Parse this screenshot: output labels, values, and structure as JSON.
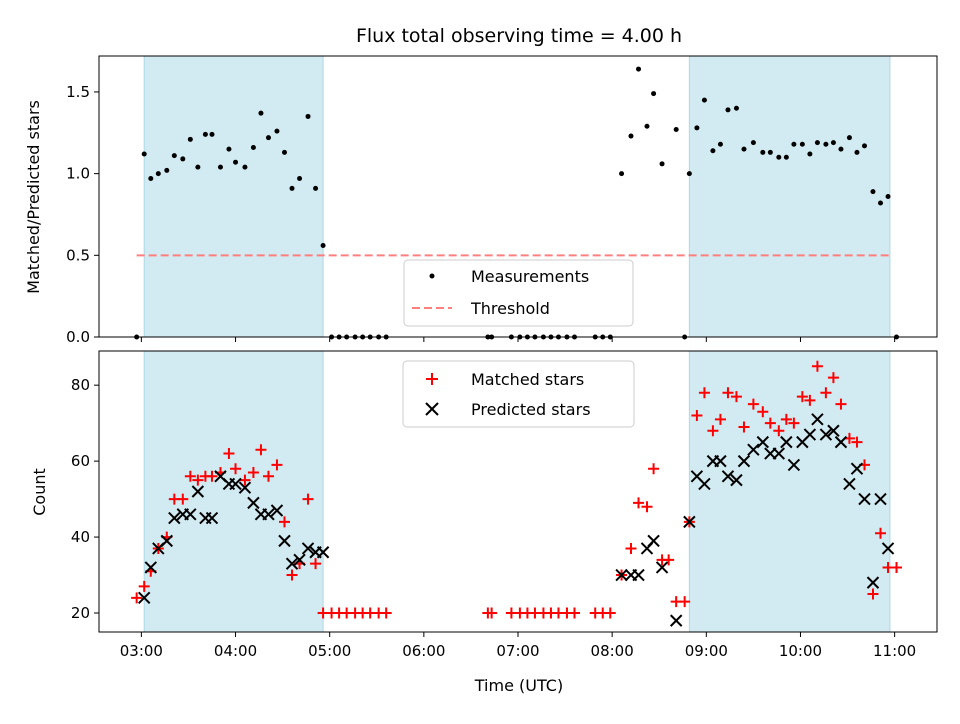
{
  "title": "Flux total observing time = 4.00 h",
  "colors": {
    "band": "#add8e6",
    "threshold": "#ff7f7f",
    "matched": "#ff0000",
    "predicted": "#000000",
    "measurement": "#000000"
  },
  "chart_data": [
    {
      "type": "scatter",
      "ylabel": "Matched/Predicted stars",
      "xlim": [
        2.55,
        11.45
      ],
      "ylim": [
        0,
        1.72
      ],
      "yticks": [
        0.0,
        0.5,
        1.0,
        1.5
      ],
      "ytick_labels": [
        "0.0",
        "0.5",
        "1.0",
        "1.5"
      ],
      "grid": false,
      "legend_position": "lower-center",
      "shaded_intervals": [
        [
          3.03,
          4.93
        ],
        [
          8.82,
          10.95
        ]
      ],
      "threshold": {
        "name": "Threshold",
        "value": 0.5,
        "x_range": [
          2.95,
          10.98
        ]
      },
      "series": [
        {
          "name": "Measurements",
          "marker": "dot",
          "points": [
            [
              2.95,
              0.0
            ],
            [
              3.03,
              1.12
            ],
            [
              3.1,
              0.97
            ],
            [
              3.18,
              1.0
            ],
            [
              3.27,
              1.02
            ],
            [
              3.35,
              1.11
            ],
            [
              3.44,
              1.09
            ],
            [
              3.52,
              1.21
            ],
            [
              3.6,
              1.04
            ],
            [
              3.68,
              1.24
            ],
            [
              3.75,
              1.24
            ],
            [
              3.84,
              1.04
            ],
            [
              3.93,
              1.15
            ],
            [
              4.0,
              1.07
            ],
            [
              4.1,
              1.04
            ],
            [
              4.19,
              1.16
            ],
            [
              4.27,
              1.37
            ],
            [
              4.35,
              1.22
            ],
            [
              4.44,
              1.26
            ],
            [
              4.52,
              1.13
            ],
            [
              4.6,
              0.91
            ],
            [
              4.68,
              0.97
            ],
            [
              4.77,
              1.35
            ],
            [
              4.85,
              0.91
            ],
            [
              4.93,
              0.56
            ],
            [
              5.02,
              0.0
            ],
            [
              5.1,
              0.0
            ],
            [
              5.18,
              0.0
            ],
            [
              5.27,
              0.0
            ],
            [
              5.35,
              0.0
            ],
            [
              5.43,
              0.0
            ],
            [
              5.52,
              0.0
            ],
            [
              5.6,
              0.0
            ],
            [
              6.68,
              0.0
            ],
            [
              6.72,
              0.0
            ],
            [
              6.93,
              0.0
            ],
            [
              7.02,
              0.0
            ],
            [
              7.1,
              0.0
            ],
            [
              7.18,
              0.0
            ],
            [
              7.27,
              0.0
            ],
            [
              7.35,
              0.0
            ],
            [
              7.43,
              0.0
            ],
            [
              7.52,
              0.0
            ],
            [
              7.6,
              0.0
            ],
            [
              7.82,
              0.0
            ],
            [
              7.9,
              0.0
            ],
            [
              7.98,
              0.0
            ],
            [
              8.1,
              1.0
            ],
            [
              8.2,
              1.23
            ],
            [
              8.28,
              1.64
            ],
            [
              8.37,
              1.29
            ],
            [
              8.44,
              1.49
            ],
            [
              8.53,
              1.06
            ],
            [
              8.68,
              1.27
            ],
            [
              8.77,
              0.0
            ],
            [
              8.82,
              1.0
            ],
            [
              8.9,
              1.28
            ],
            [
              8.98,
              1.45
            ],
            [
              9.07,
              1.14
            ],
            [
              9.15,
              1.18
            ],
            [
              9.23,
              1.39
            ],
            [
              9.32,
              1.4
            ],
            [
              9.4,
              1.15
            ],
            [
              9.5,
              1.19
            ],
            [
              9.6,
              1.13
            ],
            [
              9.68,
              1.13
            ],
            [
              9.77,
              1.1
            ],
            [
              9.85,
              1.1
            ],
            [
              9.93,
              1.18
            ],
            [
              10.02,
              1.18
            ],
            [
              10.1,
              1.12
            ],
            [
              10.18,
              1.19
            ],
            [
              10.27,
              1.18
            ],
            [
              10.35,
              1.19
            ],
            [
              10.43,
              1.15
            ],
            [
              10.52,
              1.22
            ],
            [
              10.6,
              1.13
            ],
            [
              10.68,
              1.17
            ],
            [
              10.77,
              0.89
            ],
            [
              10.85,
              0.82
            ],
            [
              10.93,
              0.86
            ],
            [
              11.02,
              0.0
            ]
          ]
        }
      ]
    },
    {
      "type": "scatter",
      "xlabel": "Time (UTC)",
      "ylabel": "Count",
      "xlim": [
        2.55,
        11.45
      ],
      "ylim": [
        15,
        89
      ],
      "xticks": [
        3,
        4,
        5,
        6,
        7,
        8,
        9,
        10,
        11
      ],
      "xtick_labels": [
        "03:00",
        "04:00",
        "05:00",
        "06:00",
        "07:00",
        "08:00",
        "09:00",
        "10:00",
        "11:00"
      ],
      "yticks": [
        20,
        40,
        60,
        80
      ],
      "ytick_labels": [
        "20",
        "40",
        "60",
        "80"
      ],
      "grid": false,
      "legend_position": "top-center",
      "shaded_intervals": [
        [
          3.03,
          4.93
        ],
        [
          8.82,
          10.95
        ]
      ],
      "series": [
        {
          "name": "Matched stars",
          "marker": "plus",
          "points": [
            [
              2.95,
              24
            ],
            [
              3.03,
              27
            ],
            [
              3.1,
              31
            ],
            [
              3.18,
              37
            ],
            [
              3.27,
              40
            ],
            [
              3.35,
              50
            ],
            [
              3.44,
              50
            ],
            [
              3.52,
              56
            ],
            [
              3.6,
              55
            ],
            [
              3.68,
              56
            ],
            [
              3.75,
              56
            ],
            [
              3.84,
              57
            ],
            [
              3.93,
              62
            ],
            [
              4.0,
              58
            ],
            [
              4.1,
              55
            ],
            [
              4.19,
              57
            ],
            [
              4.27,
              63
            ],
            [
              4.35,
              56
            ],
            [
              4.44,
              59
            ],
            [
              4.52,
              44
            ],
            [
              4.6,
              30
            ],
            [
              4.68,
              33
            ],
            [
              4.77,
              50
            ],
            [
              4.85,
              33
            ],
            [
              4.93,
              20
            ],
            [
              5.02,
              20
            ],
            [
              5.1,
              20
            ],
            [
              5.18,
              20
            ],
            [
              5.27,
              20
            ],
            [
              5.35,
              20
            ],
            [
              5.43,
              20
            ],
            [
              5.52,
              20
            ],
            [
              5.6,
              20
            ],
            [
              6.68,
              20
            ],
            [
              6.72,
              20
            ],
            [
              6.93,
              20
            ],
            [
              7.02,
              20
            ],
            [
              7.1,
              20
            ],
            [
              7.18,
              20
            ],
            [
              7.27,
              20
            ],
            [
              7.35,
              20
            ],
            [
              7.43,
              20
            ],
            [
              7.52,
              20
            ],
            [
              7.6,
              20
            ],
            [
              7.82,
              20
            ],
            [
              7.9,
              20
            ],
            [
              7.98,
              20
            ],
            [
              8.1,
              30
            ],
            [
              8.2,
              37
            ],
            [
              8.28,
              49
            ],
            [
              8.37,
              48
            ],
            [
              8.44,
              58
            ],
            [
              8.53,
              34
            ],
            [
              8.6,
              34
            ],
            [
              8.68,
              23
            ],
            [
              8.77,
              23
            ],
            [
              8.82,
              44
            ],
            [
              8.9,
              72
            ],
            [
              8.98,
              78
            ],
            [
              9.07,
              68
            ],
            [
              9.15,
              71
            ],
            [
              9.23,
              78
            ],
            [
              9.32,
              77
            ],
            [
              9.4,
              69
            ],
            [
              9.5,
              75
            ],
            [
              9.6,
              73
            ],
            [
              9.68,
              70
            ],
            [
              9.77,
              68
            ],
            [
              9.85,
              71
            ],
            [
              9.93,
              70
            ],
            [
              10.02,
              77
            ],
            [
              10.1,
              76
            ],
            [
              10.18,
              85
            ],
            [
              10.27,
              78
            ],
            [
              10.35,
              82
            ],
            [
              10.43,
              75
            ],
            [
              10.52,
              66
            ],
            [
              10.6,
              65
            ],
            [
              10.68,
              59
            ],
            [
              10.77,
              25
            ],
            [
              10.85,
              41
            ],
            [
              10.93,
              32
            ],
            [
              11.02,
              32
            ]
          ]
        },
        {
          "name": "Predicted stars",
          "marker": "cross",
          "points": [
            [
              3.03,
              24
            ],
            [
              3.1,
              32
            ],
            [
              3.18,
              37
            ],
            [
              3.27,
              39
            ],
            [
              3.35,
              45
            ],
            [
              3.44,
              46
            ],
            [
              3.52,
              46
            ],
            [
              3.6,
              52
            ],
            [
              3.68,
              45
            ],
            [
              3.75,
              45
            ],
            [
              3.84,
              56
            ],
            [
              3.93,
              54
            ],
            [
              4.0,
              54
            ],
            [
              4.1,
              53
            ],
            [
              4.19,
              49
            ],
            [
              4.27,
              46
            ],
            [
              4.35,
              46
            ],
            [
              4.44,
              47
            ],
            [
              4.52,
              39
            ],
            [
              4.6,
              33
            ],
            [
              4.68,
              34
            ],
            [
              4.77,
              37
            ],
            [
              4.85,
              36
            ],
            [
              4.93,
              36
            ],
            [
              8.1,
              30
            ],
            [
              8.2,
              30
            ],
            [
              8.28,
              30
            ],
            [
              8.37,
              37
            ],
            [
              8.44,
              39
            ],
            [
              8.53,
              32
            ],
            [
              8.68,
              18
            ],
            [
              8.82,
              44
            ],
            [
              8.9,
              56
            ],
            [
              8.98,
              54
            ],
            [
              9.07,
              60
            ],
            [
              9.15,
              60
            ],
            [
              9.23,
              56
            ],
            [
              9.32,
              55
            ],
            [
              9.4,
              60
            ],
            [
              9.5,
              63
            ],
            [
              9.6,
              65
            ],
            [
              9.68,
              62
            ],
            [
              9.77,
              62
            ],
            [
              9.85,
              65
            ],
            [
              9.93,
              59
            ],
            [
              10.02,
              65
            ],
            [
              10.1,
              67
            ],
            [
              10.18,
              71
            ],
            [
              10.27,
              67
            ],
            [
              10.35,
              68
            ],
            [
              10.43,
              65
            ],
            [
              10.52,
              54
            ],
            [
              10.6,
              58
            ],
            [
              10.68,
              50
            ],
            [
              10.77,
              28
            ],
            [
              10.85,
              50
            ],
            [
              10.93,
              37
            ]
          ]
        }
      ]
    }
  ]
}
